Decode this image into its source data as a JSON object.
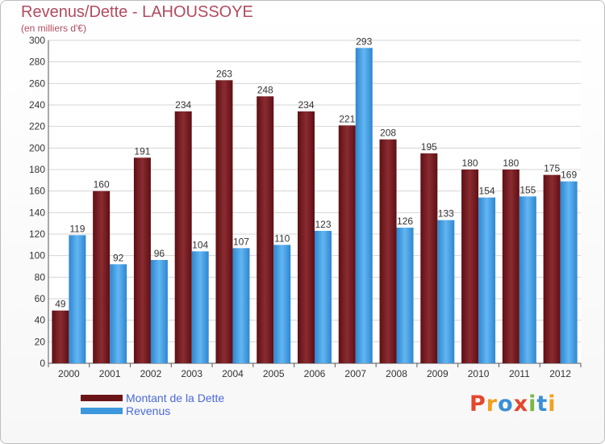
{
  "header": {
    "title": "Revenus/Dette - LAHOUSSOYE",
    "subtitle": "(en milliers d'€)"
  },
  "legend": {
    "items": [
      {
        "label": "Montant de la Dette",
        "color": "#6b1418"
      },
      {
        "label": "Revenus",
        "color": "#3c97dc"
      }
    ]
  },
  "brand": {
    "text": "Proxiti",
    "letters": [
      {
        "ch": "P",
        "color": "#e5462d"
      },
      {
        "ch": "r",
        "color": "#f2a01e"
      },
      {
        "ch": "o",
        "color": "#3a8fd6"
      },
      {
        "ch": "x",
        "color": "#e5462d"
      },
      {
        "ch": "i",
        "color": "#7ab648"
      },
      {
        "ch": "t",
        "color": "#3a8fd6"
      },
      {
        "ch": "i",
        "color": "#f2a01e"
      }
    ]
  },
  "chart_data": {
    "type": "bar",
    "title": "Revenus/Dette - LAHOUSSOYE",
    "subtitle": "(en milliers d'€)",
    "categories": [
      "2000",
      "2001",
      "2002",
      "2003",
      "2004",
      "2005",
      "2006",
      "2007",
      "2008",
      "2009",
      "2010",
      "2011",
      "2012"
    ],
    "series": [
      {
        "name": "Montant de la Dette",
        "color": "#7a1f24",
        "values": [
          49,
          160,
          191,
          234,
          263,
          248,
          234,
          221,
          208,
          195,
          180,
          180,
          175
        ]
      },
      {
        "name": "Revenus",
        "color": "#4aa3e6",
        "values": [
          119,
          92,
          96,
          104,
          107,
          110,
          123,
          293,
          126,
          133,
          154,
          155,
          169
        ]
      }
    ],
    "ylim": [
      0,
      300
    ],
    "yticks": [
      0,
      20,
      40,
      60,
      80,
      100,
      120,
      140,
      160,
      180,
      200,
      220,
      240,
      260,
      280,
      300
    ],
    "grid": true,
    "legend": "bottom-left",
    "data_labels": true
  }
}
